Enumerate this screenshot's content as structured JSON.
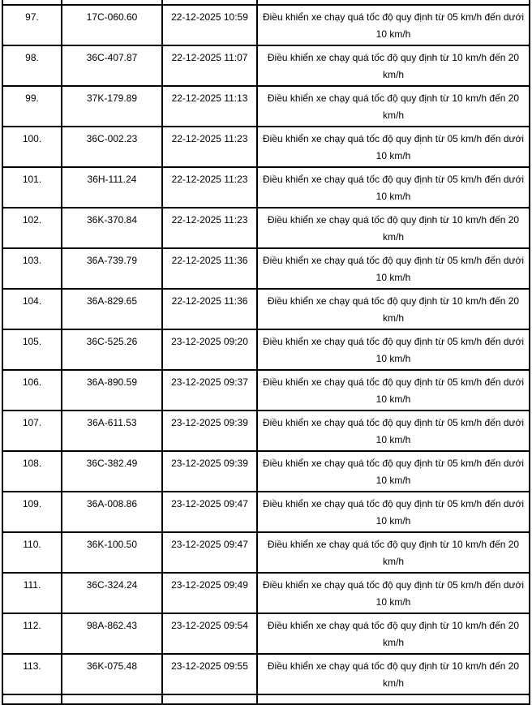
{
  "page": {
    "background_color": "#ffffff",
    "text_color": "#000000",
    "border_color": "#000000"
  },
  "table": {
    "rows": [
      {
        "stt": "97.",
        "plate": "17C-060.60",
        "time": "22-12-2025 10:59",
        "violation": "Điều khiển xe chạy quá tốc độ quy định từ 05 km/h đến dưới 10 km/h"
      },
      {
        "stt": "98.",
        "plate": "36C-407.87",
        "time": "22-12-2025 11:07",
        "violation": "Điều khiển xe chạy quá tốc độ quy định từ 10 km/h đến 20 km/h"
      },
      {
        "stt": "99.",
        "plate": "37K-179.89",
        "time": "22-12-2025 11:13",
        "violation": "Điều khiển xe chạy quá tốc độ quy định từ 10 km/h đến 20 km/h"
      },
      {
        "stt": "100.",
        "plate": "36C-002.23",
        "time": "22-12-2025 11:23",
        "violation": "Điều khiển xe chạy quá tốc độ quy định từ 05 km/h đến dưới 10 km/h"
      },
      {
        "stt": "101.",
        "plate": "36H-111.24",
        "time": "22-12-2025 11:23",
        "violation": "Điều khiển xe chạy quá tốc độ quy định từ 05 km/h đến dưới 10 km/h"
      },
      {
        "stt": "102.",
        "plate": "36K-370.84",
        "time": "22-12-2025 11:23",
        "violation": "Điều khiển xe chạy quá tốc độ quy định từ 10 km/h đến 20 km/h"
      },
      {
        "stt": "103.",
        "plate": "36A-739.79",
        "time": "22-12-2025 11:36",
        "violation": "Điều khiển xe chạy quá tốc độ quy định từ 05 km/h đến dưới 10 km/h"
      },
      {
        "stt": "104.",
        "plate": "36A-829.65",
        "time": "22-12-2025 11:36",
        "violation": "Điều khiển xe chạy quá tốc độ quy định từ 10 km/h đến 20 km/h"
      },
      {
        "stt": "105.",
        "plate": "36C-525.26",
        "time": "23-12-2025 09:20",
        "violation": "Điều khiển xe chạy quá tốc độ quy định từ 05 km/h đến dưới 10 km/h"
      },
      {
        "stt": "106.",
        "plate": "36A-890.59",
        "time": "23-12-2025 09:37",
        "violation": "Điều khiển xe chạy quá tốc độ quy định từ 05 km/h đến dưới 10 km/h"
      },
      {
        "stt": "107.",
        "plate": "36A-611.53",
        "time": "23-12-2025 09:39",
        "violation": "Điều khiển xe chạy quá tốc độ quy định từ 05 km/h đến dưới 10 km/h"
      },
      {
        "stt": "108.",
        "plate": "36C-382.49",
        "time": "23-12-2025 09:39",
        "violation": "Điều khiển xe chạy quá tốc độ quy định từ 05 km/h đến dưới 10 km/h"
      },
      {
        "stt": "109.",
        "plate": "36A-008.86",
        "time": "23-12-2025 09:47",
        "violation": "Điều khiển xe chạy quá tốc độ quy định từ 05 km/h đến dưới 10 km/h"
      },
      {
        "stt": "110.",
        "plate": "36K-100.50",
        "time": "23-12-2025 09:47",
        "violation": "Điều khiển xe chạy quá tốc độ quy định từ 10 km/h đến 20 km/h"
      },
      {
        "stt": "111.",
        "plate": "36C-324.24",
        "time": "23-12-2025 09:49",
        "violation": "Điều khiển xe chạy quá tốc độ quy định từ 05 km/h đến dưới 10 km/h"
      },
      {
        "stt": "112.",
        "plate": "98A-862.43",
        "time": "23-12-2025 09:54",
        "violation": "Điều khiển xe chạy quá tốc độ quy định từ 10 km/h đến 20 km/h"
      },
      {
        "stt": "113.",
        "plate": "36K-075.48",
        "time": "23-12-2025 09:55",
        "violation": "Điều khiển xe chạy quá tốc độ quy định từ 10 km/h đến 20 km/h"
      }
    ]
  }
}
